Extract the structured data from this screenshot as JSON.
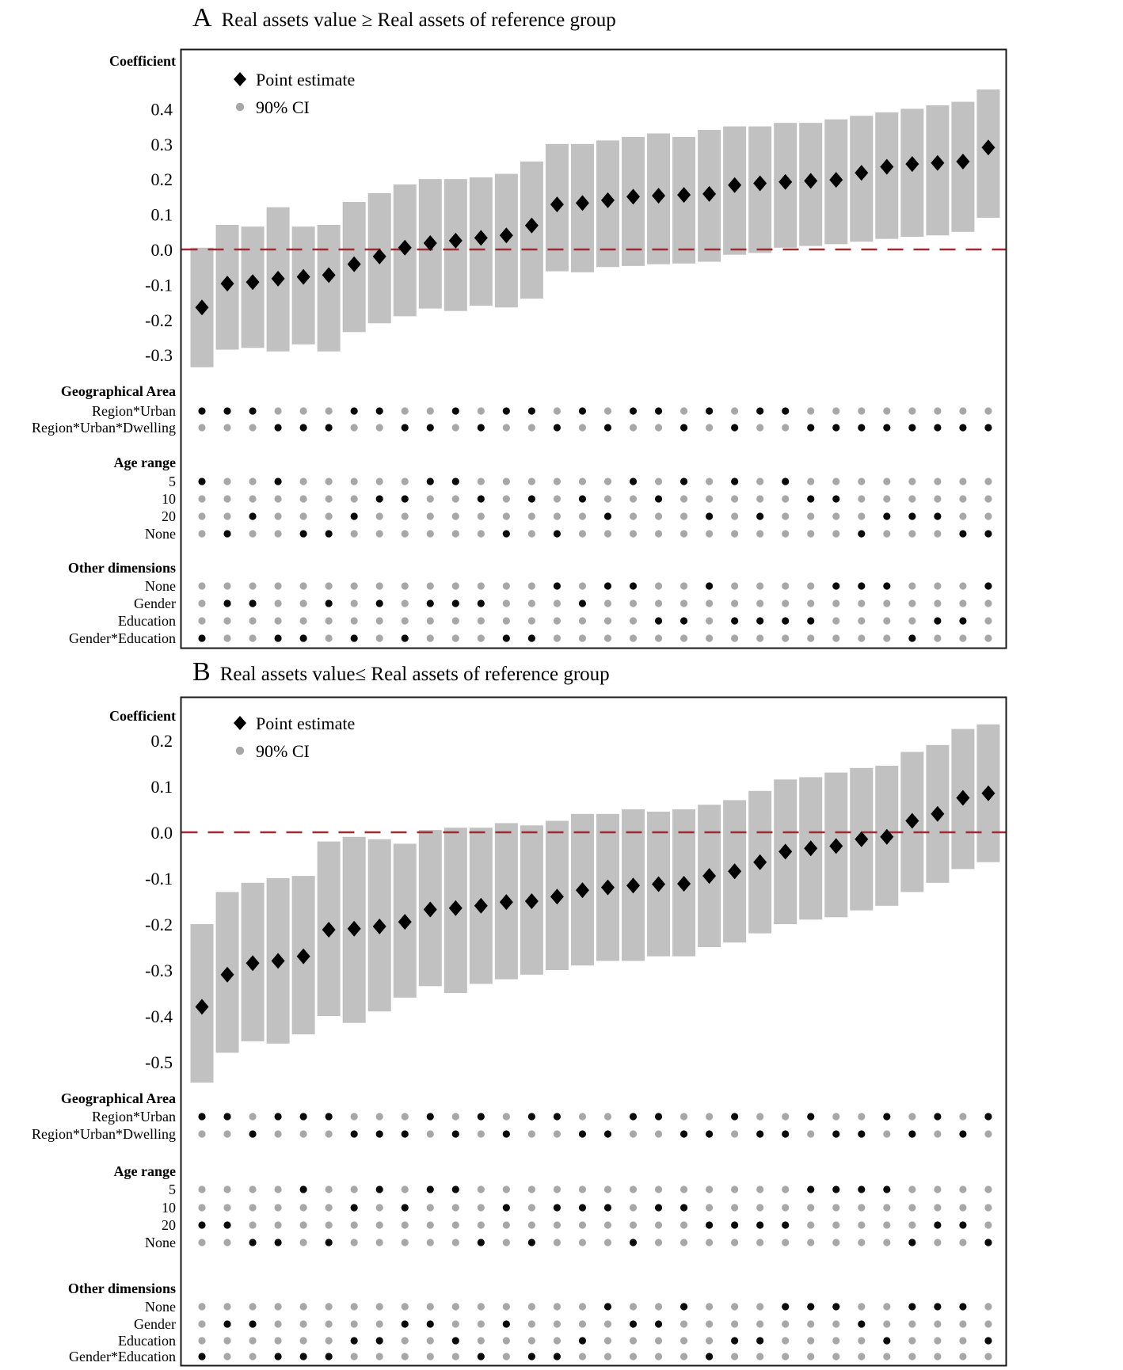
{
  "colors": {
    "ci_bar": "#c1c1c1",
    "point_estimate": "#000000",
    "gray_dot": "#a7a7a7",
    "black_dot": "#0a0a0a",
    "zero_line": "#9e2b33",
    "border": "#1a1a1a"
  },
  "panels": [
    {
      "letter": "A",
      "title": "Real assets value ≥ Real assets of reference group",
      "axis_label": "Coefficient",
      "legend": {
        "point_estimate": "Point estimate",
        "ci": "90% CI"
      }
    },
    {
      "letter": "B",
      "title": "Real assets value≤ Real assets of reference group",
      "axis_label": "Coefficient",
      "legend": {
        "point_estimate": "Point estimate",
        "ci": "90% CI"
      }
    }
  ],
  "chart_data": [
    {
      "panel": "A",
      "type": "scatter",
      "subtype": "specification-curve",
      "n_specs": 32,
      "title": "Real assets value ≥ Real assets of reference group",
      "ylabel": "Coefficient",
      "yticks": [
        0.4,
        0.3,
        0.2,
        0.1,
        0.0,
        -0.1,
        -0.2,
        -0.3
      ],
      "ylim": [
        -0.37,
        0.47
      ],
      "zero_line": 0.0,
      "legend_position": "top-left",
      "grid": false,
      "estimate": [
        -0.165,
        -0.097,
        -0.093,
        -0.083,
        -0.078,
        -0.073,
        -0.042,
        -0.02,
        0.005,
        0.018,
        0.025,
        0.033,
        0.04,
        0.068,
        0.128,
        0.132,
        0.14,
        0.15,
        0.153,
        0.155,
        0.158,
        0.183,
        0.188,
        0.192,
        0.195,
        0.198,
        0.218,
        0.235,
        0.243,
        0.246,
        0.25,
        0.29
      ],
      "ci_low": [
        -0.335,
        -0.285,
        -0.28,
        -0.29,
        -0.27,
        -0.29,
        -0.235,
        -0.21,
        -0.19,
        -0.168,
        -0.175,
        -0.16,
        -0.165,
        -0.14,
        -0.062,
        -0.065,
        -0.05,
        -0.047,
        -0.042,
        -0.04,
        -0.035,
        -0.015,
        -0.01,
        0.005,
        0.01,
        0.015,
        0.022,
        0.03,
        0.036,
        0.04,
        0.05,
        0.09
      ],
      "ci_high": [
        0.005,
        0.07,
        0.065,
        0.12,
        0.065,
        0.07,
        0.135,
        0.16,
        0.185,
        0.2,
        0.2,
        0.205,
        0.215,
        0.25,
        0.3,
        0.3,
        0.31,
        0.32,
        0.33,
        0.32,
        0.34,
        0.35,
        0.35,
        0.36,
        0.36,
        0.37,
        0.38,
        0.39,
        0.4,
        0.41,
        0.42,
        0.455
      ],
      "spec_groups": [
        {
          "header": "Geographical Area",
          "rows": [
            {
              "label": "Region*Urban",
              "black_cols": [
                1,
                2,
                3,
                7,
                8,
                11,
                13,
                14,
                16,
                18,
                19,
                21,
                23,
                24
              ]
            },
            {
              "label": "Region*Urban*Dwelling",
              "black_cols": [
                4,
                5,
                6,
                9,
                10,
                12,
                15,
                17,
                20,
                22,
                25,
                26,
                27,
                28,
                29,
                30,
                31,
                32
              ]
            }
          ]
        },
        {
          "header": "Age range",
          "rows": [
            {
              "label": "5",
              "black_cols": [
                1,
                4,
                10,
                11,
                18,
                20,
                22,
                24
              ]
            },
            {
              "label": "10",
              "black_cols": [
                8,
                9,
                12,
                14,
                16,
                19,
                25,
                26
              ]
            },
            {
              "label": "20",
              "black_cols": [
                3,
                7,
                17,
                21,
                23,
                28,
                29,
                30
              ]
            },
            {
              "label": "None",
              "black_cols": [
                2,
                5,
                6,
                13,
                15,
                27,
                31,
                32
              ]
            }
          ]
        },
        {
          "header": "Other dimensions",
          "rows": [
            {
              "label": "None",
              "black_cols": [
                15,
                17,
                18,
                21,
                26,
                27,
                28,
                32
              ]
            },
            {
              "label": "Gender",
              "black_cols": [
                2,
                3,
                6,
                8,
                10,
                11,
                12,
                16
              ]
            },
            {
              "label": "Education",
              "black_cols": [
                19,
                20,
                22,
                23,
                24,
                25,
                30,
                31
              ]
            },
            {
              "label": "Gender*Education",
              "black_cols": [
                1,
                4,
                5,
                7,
                9,
                13,
                14,
                29
              ]
            }
          ]
        }
      ]
    },
    {
      "panel": "B",
      "type": "scatter",
      "subtype": "specification-curve",
      "n_specs": 32,
      "title": "Real assets value≤ Real assets of reference group",
      "ylabel": "Coefficient",
      "yticks": [
        0.2,
        0.1,
        0.0,
        -0.1,
        -0.2,
        -0.3,
        -0.4,
        -0.5
      ],
      "ylim": [
        -0.58,
        0.27
      ],
      "zero_line": 0.0,
      "legend_position": "top-left",
      "grid": false,
      "estimate": [
        -0.38,
        -0.31,
        -0.285,
        -0.28,
        -0.27,
        -0.212,
        -0.21,
        -0.205,
        -0.195,
        -0.168,
        -0.165,
        -0.16,
        -0.152,
        -0.15,
        -0.14,
        -0.126,
        -0.12,
        -0.116,
        -0.113,
        -0.112,
        -0.095,
        -0.085,
        -0.065,
        -0.042,
        -0.035,
        -0.03,
        -0.015,
        -0.01,
        0.025,
        0.04,
        0.075,
        0.085
      ],
      "ci_low": [
        -0.545,
        -0.48,
        -0.455,
        -0.46,
        -0.44,
        -0.4,
        -0.415,
        -0.39,
        -0.36,
        -0.335,
        -0.35,
        -0.33,
        -0.32,
        -0.31,
        -0.3,
        -0.29,
        -0.28,
        -0.28,
        -0.27,
        -0.27,
        -0.25,
        -0.24,
        -0.22,
        -0.2,
        -0.19,
        -0.185,
        -0.17,
        -0.16,
        -0.13,
        -0.11,
        -0.08,
        -0.065
      ],
      "ci_high": [
        -0.2,
        -0.13,
        -0.11,
        -0.1,
        -0.095,
        -0.02,
        -0.01,
        -0.015,
        -0.025,
        0.005,
        0.01,
        0.01,
        0.02,
        0.015,
        0.025,
        0.04,
        0.04,
        0.05,
        0.045,
        0.05,
        0.06,
        0.07,
        0.09,
        0.115,
        0.12,
        0.13,
        0.14,
        0.145,
        0.175,
        0.19,
        0.225,
        0.235
      ],
      "spec_groups": [
        {
          "header": "Geographical Area",
          "rows": [
            {
              "label": "Region*Urban",
              "black_cols": [
                1,
                2,
                4,
                5,
                6,
                10,
                12,
                14,
                15,
                18,
                19,
                22,
                25,
                28,
                30,
                32
              ]
            },
            {
              "label": "Region*Urban*Dwelling",
              "black_cols": [
                3,
                7,
                8,
                9,
                11,
                13,
                16,
                17,
                20,
                21,
                23,
                24,
                26,
                27,
                29,
                31
              ]
            }
          ]
        },
        {
          "header": "Age range",
          "rows": [
            {
              "label": "5",
              "black_cols": [
                5,
                8,
                10,
                11,
                25,
                26,
                27,
                28
              ]
            },
            {
              "label": "10",
              "black_cols": [
                7,
                9,
                13,
                15,
                16,
                17,
                19,
                20
              ]
            },
            {
              "label": "20",
              "black_cols": [
                1,
                2,
                21,
                22,
                23,
                24,
                30,
                31
              ]
            },
            {
              "label": "None",
              "black_cols": [
                3,
                4,
                6,
                12,
                14,
                18,
                29,
                32
              ]
            }
          ]
        },
        {
          "header": "Other dimensions",
          "rows": [
            {
              "label": "None",
              "black_cols": [
                17,
                20,
                24,
                25,
                26,
                29,
                30,
                31
              ]
            },
            {
              "label": "Gender",
              "black_cols": [
                2,
                3,
                9,
                10,
                13,
                18,
                19,
                27
              ]
            },
            {
              "label": "Education",
              "black_cols": [
                7,
                8,
                11,
                16,
                22,
                23,
                28,
                32
              ]
            },
            {
              "label": "Gender*Education",
              "black_cols": [
                1,
                4,
                5,
                6,
                12,
                14,
                15,
                21
              ]
            }
          ]
        }
      ]
    }
  ]
}
